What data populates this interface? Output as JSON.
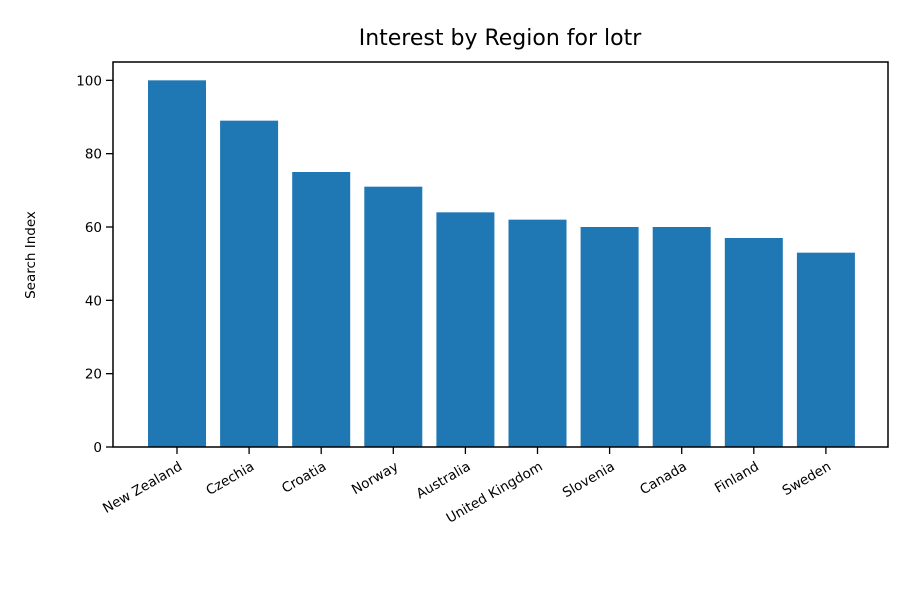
{
  "chart_data": {
    "type": "bar",
    "title": "Interest by Region for lotr",
    "xlabel": "",
    "ylabel": "Search Index",
    "categories": [
      "New Zealand",
      "Czechia",
      "Croatia",
      "Norway",
      "Australia",
      "United Kingdom",
      "Slovenia",
      "Canada",
      "Finland",
      "Sweden"
    ],
    "values": [
      100,
      89,
      75,
      71,
      64,
      62,
      60,
      60,
      57,
      53
    ],
    "ylim": [
      0,
      105
    ],
    "yticks": [
      0,
      20,
      40,
      60,
      80,
      100
    ],
    "bar_color": "#1f77b4",
    "grid": false,
    "legend": "none"
  }
}
